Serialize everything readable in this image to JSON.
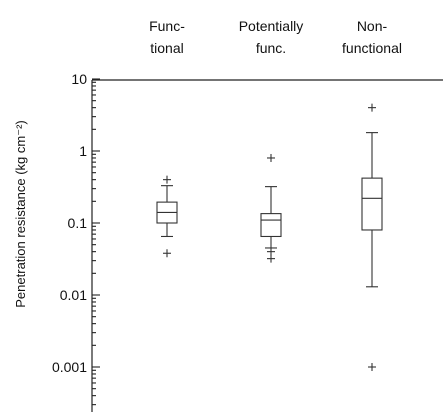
{
  "chart_data": {
    "type": "boxplot",
    "categories": [
      [
        "Func-",
        "tional"
      ],
      [
        "Potentially",
        "func."
      ],
      [
        "Non-",
        "functional"
      ]
    ],
    "ylabel": "Penetration resistance (kg cm⁻²)",
    "yscale": "log",
    "ylim": [
      0.0005,
      10
    ],
    "yticks": [
      10,
      1,
      0.1,
      0.01,
      0.001
    ],
    "ytick_labels": [
      "10",
      "1",
      "0.1",
      "0.01",
      "0.001"
    ],
    "boxes": [
      {
        "category": "Functional",
        "whisker_low": 0.065,
        "q1": 0.1,
        "median": 0.14,
        "q3": 0.195,
        "whisker_high": 0.33,
        "outliers": [
          0.4,
          0.038
        ]
      },
      {
        "category": "Potentially func.",
        "whisker_low": 0.045,
        "q1": 0.065,
        "median": 0.11,
        "q3": 0.135,
        "whisker_high": 0.32,
        "outliers": [
          0.8,
          0.04,
          0.032
        ]
      },
      {
        "category": "Non-functional",
        "whisker_low": 0.013,
        "q1": 0.08,
        "median": 0.22,
        "q3": 0.42,
        "whisker_high": 1.8,
        "outliers": [
          4,
          0.001
        ]
      }
    ]
  }
}
